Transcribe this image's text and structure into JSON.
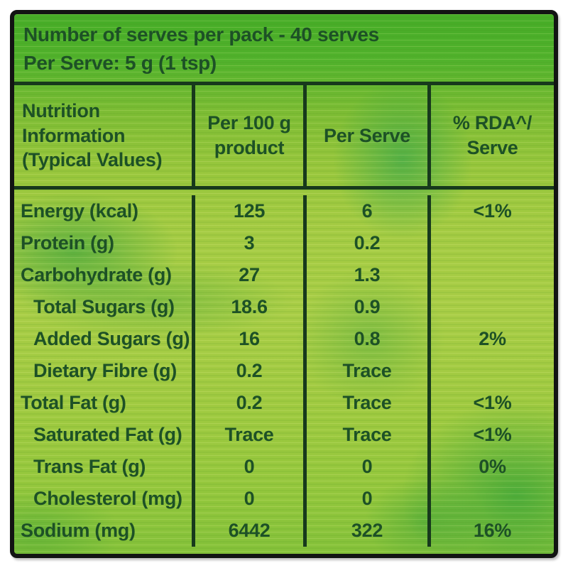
{
  "header": {
    "line1": "Number of serves per pack - 40 serves",
    "line2": "Per Serve: 5 g (1 tsp)"
  },
  "table": {
    "columns": [
      "Nutrition\nInformation\n(Typical Values)",
      "Per 100 g\nproduct",
      "Per Serve",
      "% RDA^/\nServe"
    ],
    "rows": [
      {
        "label": "Energy (kcal)",
        "indent": false,
        "per100g": "125",
        "perServe": "6",
        "rda": "<1%"
      },
      {
        "label": "Protein (g)",
        "indent": false,
        "per100g": "3",
        "perServe": "0.2",
        "rda": ""
      },
      {
        "label": "Carbohydrate (g)",
        "indent": false,
        "per100g": "27",
        "perServe": "1.3",
        "rda": ""
      },
      {
        "label": "Total Sugars (g)",
        "indent": true,
        "per100g": "18.6",
        "perServe": "0.9",
        "rda": ""
      },
      {
        "label": "Added Sugars (g)",
        "indent": true,
        "per100g": "16",
        "perServe": "0.8",
        "rda": "2%"
      },
      {
        "label": "Dietary Fibre (g)",
        "indent": true,
        "per100g": "0.2",
        "perServe": "Trace",
        "rda": ""
      },
      {
        "label": "Total Fat (g)",
        "indent": false,
        "per100g": "0.2",
        "perServe": "Trace",
        "rda": "<1%"
      },
      {
        "label": "Saturated Fat (g)",
        "indent": true,
        "per100g": "Trace",
        "perServe": "Trace",
        "rda": "<1%"
      },
      {
        "label": "Trans Fat (g)",
        "indent": true,
        "per100g": "0",
        "perServe": "0",
        "rda": "0%"
      },
      {
        "label": "Cholesterol (mg)",
        "indent": true,
        "per100g": "0",
        "perServe": "0",
        "rda": ""
      },
      {
        "label": "Sodium (mg)",
        "indent": false,
        "per100g": "6442",
        "perServe": "322",
        "rda": "16%"
      }
    ]
  },
  "colors": {
    "ink": "#1d5126",
    "line": "#17391c",
    "border": "#121413",
    "base_green": "#a4cb43",
    "dark_band_green": "#45ac27",
    "page": "#ffffff"
  }
}
